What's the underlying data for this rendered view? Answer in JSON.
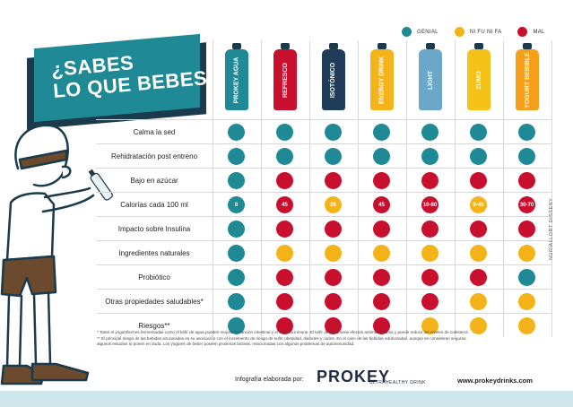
{
  "title": {
    "line1": "¿SABES",
    "line2": "LO QUE BEBES?"
  },
  "legend": [
    {
      "label": "GENIAL",
      "color": "#1f8a95"
    },
    {
      "label": "NI FU NI FA",
      "color": "#f5b31a"
    },
    {
      "label": "MAL",
      "color": "#c8102e"
    }
  ],
  "drinks": [
    {
      "label": "PROKEY AGUA",
      "color": "#1f8a95"
    },
    {
      "label": "REFRESCO",
      "color": "#c8102e"
    },
    {
      "label": "ISOTÓNICO",
      "color": "#1f3d5a"
    },
    {
      "label": "ENERGY DRINK",
      "color": "#f5b31a"
    },
    {
      "label": "LIGHT",
      "color": "#6aa7c9"
    },
    {
      "label": "ZUMO",
      "color": "#f5c21a"
    },
    {
      "label": "YOGURT BEBIBLE",
      "color": "#f59f1a"
    }
  ],
  "rows": [
    {
      "label": "Calma la sed",
      "cells": [
        "g",
        "g",
        "g",
        "g",
        "g",
        "g",
        "g"
      ],
      "values": [
        "",
        "",
        "",
        "",
        "",
        "",
        ""
      ]
    },
    {
      "label": "Rehidratación post entreno",
      "cells": [
        "g",
        "g",
        "g",
        "g",
        "g",
        "g",
        "g"
      ],
      "values": [
        "",
        "",
        "",
        "",
        "",
        "",
        ""
      ]
    },
    {
      "label": "Bajo en azúcar",
      "cells": [
        "g",
        "m",
        "m",
        "m",
        "m",
        "m",
        "m"
      ],
      "values": [
        "",
        "",
        "",
        "",
        "",
        "",
        ""
      ]
    },
    {
      "label": "Calorías cada 100 ml",
      "cells": [
        "g",
        "m",
        "y",
        "m",
        "m",
        "y",
        "m"
      ],
      "values": [
        "8",
        "45",
        "26",
        "45",
        "10-80",
        "0-45",
        "30-70"
      ]
    },
    {
      "label": "Impacto sobre Insulina",
      "cells": [
        "g",
        "m",
        "m",
        "m",
        "m",
        "m",
        "m"
      ],
      "values": [
        "",
        "",
        "",
        "",
        "",
        "",
        ""
      ]
    },
    {
      "label": "Ingredientes naturales",
      "cells": [
        "g",
        "y",
        "y",
        "y",
        "y",
        "y",
        "y"
      ],
      "values": [
        "",
        "",
        "",
        "",
        "",
        "",
        ""
      ]
    },
    {
      "label": "Probiótico",
      "cells": [
        "g",
        "m",
        "m",
        "m",
        "m",
        "m",
        "g"
      ],
      "values": [
        "",
        "",
        "",
        "",
        "",
        "",
        ""
      ]
    },
    {
      "label": "Otras propiedades saludables*",
      "cells": [
        "g",
        "m",
        "m",
        "m",
        "m",
        "y",
        "y"
      ],
      "values": [
        "",
        "",
        "",
        "",
        "",
        "",
        ""
      ]
    },
    {
      "label": "Riesgos**",
      "cells": [
        "g",
        "m",
        "m",
        "m",
        "y",
        "y",
        "y"
      ],
      "values": [
        "",
        "",
        "",
        "",
        "",
        "",
        ""
      ]
    }
  ],
  "footnote": {
    "line1": "* Tanto el yogurt/leches fermentadas como el kéfir de agua pueden mejorar la función intestinal y el sistema inmune. El kéfir de agua tiene efectos antimicrobianos y puede reducir los niveles de colesterol.",
    "line2": "** El principal riesgo de las bebidas azucaradas es su asociación con el incremento de riesgo de sufrir obesidad, diabetes y caries. En el caso de las bebidas edulcoradas, aunque se consideran seguras,",
    "line3": "algunos estudios lo ponen en duda. Los yogures de beber poseen proteínas lácteas, relacionadas con algunos problemas de autoinmunidad."
  },
  "credit": "Infografía elaborada por:",
  "logo": "PROKEY",
  "logo_sub": "ULTRAHEALTHY DRINK",
  "url": "www.prokeydrinks.com",
  "side_credit": "NURIALLORT DISSENY"
}
